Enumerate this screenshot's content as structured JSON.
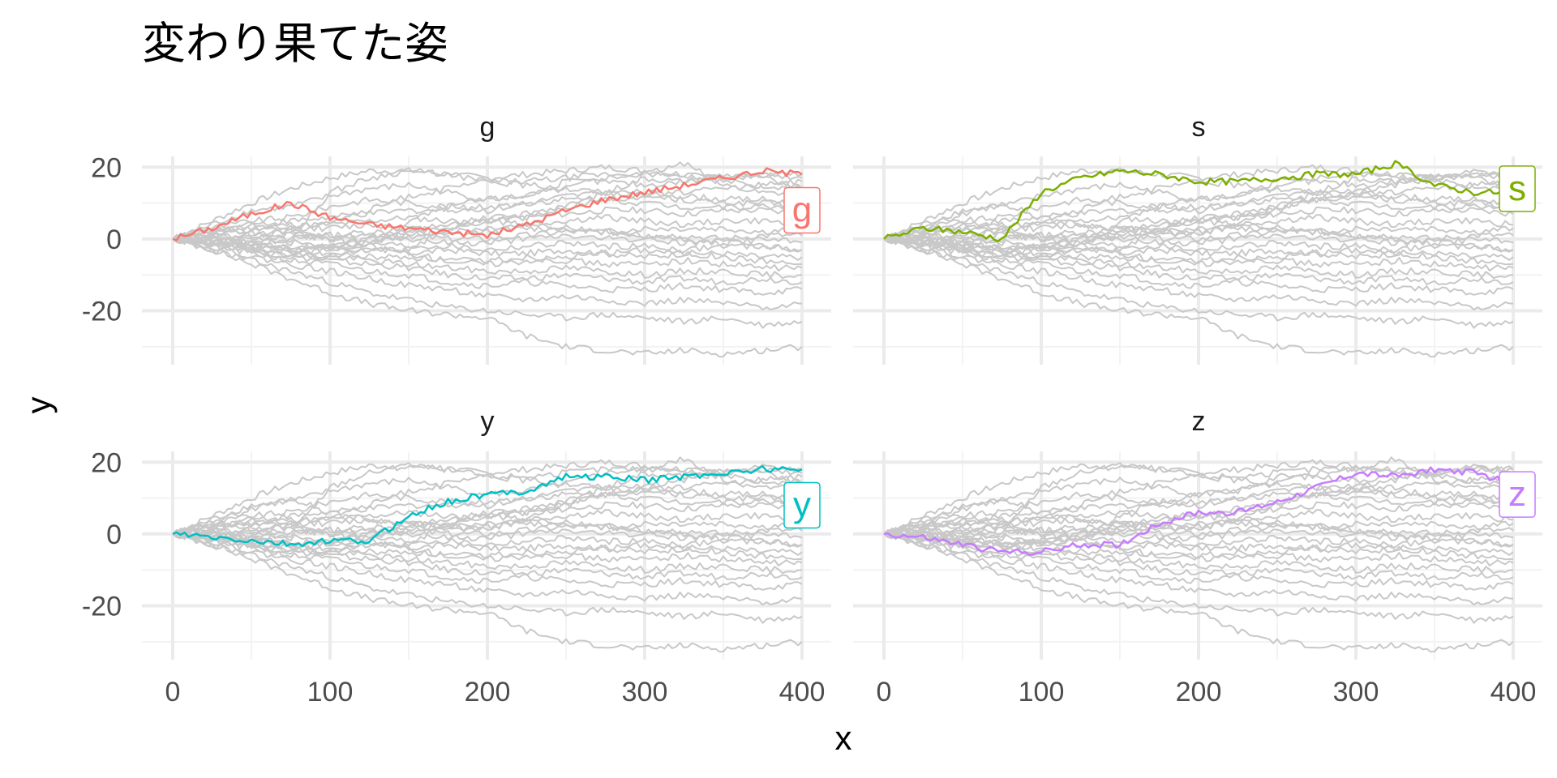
{
  "title": "変わり果てた姿",
  "xlabel": "x",
  "ylabel": "y",
  "colors": {
    "background_lines": "#c8c8c8",
    "grid_major": "#ebebeb",
    "grid_minor": "#f3f3f3",
    "tick_text": "#4d4d4d"
  },
  "chart_data": {
    "type": "line",
    "layout": "facet-grid-2x2",
    "xlim": [
      0,
      400
    ],
    "ylim": [
      -35,
      23
    ],
    "x_ticks": [
      0,
      100,
      200,
      300,
      400
    ],
    "y_ticks": [
      -20,
      0,
      20
    ],
    "grid": true,
    "legend": "none (each panel labels its highlighted series at the line end)",
    "note": "Every panel shows all series in grey; the panel's own series is drawn in color.",
    "x": [
      0,
      25,
      50,
      75,
      100,
      125,
      150,
      175,
      200,
      225,
      250,
      275,
      300,
      325,
      350,
      375,
      400
    ],
    "highlighted_series": [
      {
        "name": "g",
        "color": "#F8766D",
        "label_y": 8,
        "values": [
          0,
          3,
          7,
          10,
          6,
          4,
          3,
          2,
          1,
          4,
          8,
          11,
          13,
          15,
          17,
          19,
          18
        ]
      },
      {
        "name": "s",
        "color": "#7CAE00",
        "label_y": 14,
        "values": [
          0,
          3,
          2,
          0,
          13,
          17,
          19,
          18,
          16,
          16,
          17,
          18,
          18,
          21,
          15,
          13,
          13
        ]
      },
      {
        "name": "y",
        "color": "#00BFC4",
        "label_y": 8,
        "values": [
          0,
          -1,
          -2,
          -3,
          -2,
          -2,
          5,
          9,
          11,
          12,
          16,
          16,
          15,
          16,
          17,
          18,
          18
        ]
      },
      {
        "name": "z",
        "color": "#C77CFF",
        "label_y": 11,
        "values": [
          0,
          -1,
          -3,
          -5,
          -5,
          -3,
          -3,
          3,
          6,
          6,
          9,
          13,
          17,
          16,
          18,
          17,
          14
        ]
      }
    ],
    "background_series": [
      {
        "values": [
          0,
          5,
          10,
          14,
          17,
          19,
          19,
          18,
          17,
          18,
          19,
          20,
          19,
          18,
          16,
          15,
          14
        ]
      },
      {
        "values": [
          0,
          4,
          8,
          9,
          12,
          14,
          15,
          13,
          11,
          12,
          14,
          17,
          18,
          18,
          17,
          18,
          17
        ]
      },
      {
        "values": [
          0,
          3,
          5,
          6,
          9,
          11,
          10,
          9,
          8,
          10,
          12,
          13,
          13,
          12,
          11,
          11,
          10
        ]
      },
      {
        "values": [
          0,
          2,
          4,
          5,
          6,
          7,
          8,
          8,
          9,
          10,
          11,
          11,
          10,
          9,
          9,
          9,
          9
        ]
      },
      {
        "values": [
          0,
          2,
          3,
          4,
          4,
          5,
          6,
          5,
          5,
          6,
          7,
          8,
          8,
          7,
          8,
          8,
          7
        ]
      },
      {
        "values": [
          0,
          1,
          2,
          3,
          3,
          4,
          3,
          2,
          3,
          4,
          5,
          6,
          5,
          4,
          5,
          5,
          4
        ]
      },
      {
        "values": [
          0,
          1,
          1,
          2,
          1,
          2,
          2,
          1,
          2,
          3,
          3,
          2,
          3,
          3,
          3,
          2,
          3
        ]
      },
      {
        "values": [
          0,
          1,
          0,
          1,
          0,
          0,
          1,
          0,
          0,
          1,
          2,
          2,
          1,
          1,
          0,
          1,
          1
        ]
      },
      {
        "values": [
          0,
          0,
          -1,
          0,
          1,
          1,
          0,
          -1,
          -1,
          0,
          1,
          0,
          0,
          -1,
          -1,
          0,
          -1
        ]
      },
      {
        "values": [
          0,
          0,
          -1,
          -1,
          -2,
          -1,
          -2,
          -2,
          -3,
          -2,
          -1,
          -2,
          -2,
          -3,
          -2,
          -2,
          -3
        ]
      },
      {
        "values": [
          0,
          -1,
          -2,
          -2,
          -3,
          -3,
          -4,
          -3,
          -4,
          -4,
          -3,
          -4,
          -5,
          -4,
          -4,
          -5,
          -5
        ]
      },
      {
        "values": [
          0,
          -1,
          -2,
          -3,
          -4,
          -5,
          -5,
          -6,
          -6,
          -5,
          -6,
          -7,
          -7,
          -6,
          -7,
          -8,
          -8
        ]
      },
      {
        "values": [
          0,
          -1,
          -3,
          -4,
          -5,
          -6,
          -7,
          -8,
          -9,
          -9,
          -8,
          -9,
          -10,
          -9,
          -9,
          -10,
          -10
        ]
      },
      {
        "values": [
          0,
          -2,
          -3,
          -5,
          -6,
          -7,
          -8,
          -10,
          -11,
          -11,
          -10,
          -11,
          -12,
          -11,
          -12,
          -11,
          -12
        ]
      },
      {
        "values": [
          0,
          -2,
          -4,
          -6,
          -7,
          -9,
          -10,
          -12,
          -13,
          -12,
          -13,
          -14,
          -14,
          -13,
          -14,
          -15,
          -14
        ]
      },
      {
        "values": [
          0,
          -2,
          -5,
          -7,
          -9,
          -11,
          -13,
          -14,
          -16,
          -17,
          -16,
          -17,
          -18,
          -17,
          -18,
          -19,
          -18
        ]
      },
      {
        "values": [
          0,
          -3,
          -6,
          -9,
          -12,
          -15,
          -17,
          -19,
          -20,
          -21,
          -22,
          -21,
          -22,
          -23,
          -22,
          -24,
          -23
        ]
      },
      {
        "values": [
          0,
          -3,
          -7,
          -11,
          -15,
          -18,
          -20,
          -21,
          -22,
          -27,
          -30,
          -31,
          -32,
          -31,
          -32,
          -31,
          -30
        ]
      },
      {
        "values": [
          0,
          2,
          4,
          3,
          5,
          8,
          12,
          14,
          16,
          15,
          14,
          13,
          12,
          11,
          10,
          10,
          9
        ]
      },
      {
        "values": [
          0,
          -1,
          1,
          2,
          0,
          -2,
          -4,
          -6,
          -7,
          -6,
          -5,
          -4,
          -3,
          -4,
          -5,
          -6,
          -7
        ]
      },
      {
        "values": [
          0,
          1,
          -1,
          -3,
          -2,
          0,
          2,
          4,
          5,
          4,
          3,
          2,
          1,
          0,
          -1,
          -2,
          -3
        ]
      },
      {
        "values": [
          0,
          -1,
          -2,
          -4,
          -3,
          -1,
          1,
          3,
          5,
          7,
          9,
          11,
          12,
          13,
          14,
          15,
          16
        ]
      }
    ]
  },
  "panels": [
    {
      "name": "g",
      "strip": "g",
      "highlight": 0,
      "y_tick_labels": [
        "20",
        "0",
        "-20"
      ],
      "x_tick_labels": []
    },
    {
      "name": "s",
      "strip": "s",
      "highlight": 1,
      "y_tick_labels": [],
      "x_tick_labels": []
    },
    {
      "name": "y",
      "strip": "y",
      "highlight": 2,
      "y_tick_labels": [
        "20",
        "0",
        "-20"
      ],
      "x_tick_labels": [
        "0",
        "100",
        "200",
        "300",
        "400"
      ]
    },
    {
      "name": "z",
      "strip": "z",
      "highlight": 3,
      "y_tick_labels": [],
      "x_tick_labels": [
        "0",
        "100",
        "200",
        "300",
        "400"
      ]
    }
  ]
}
